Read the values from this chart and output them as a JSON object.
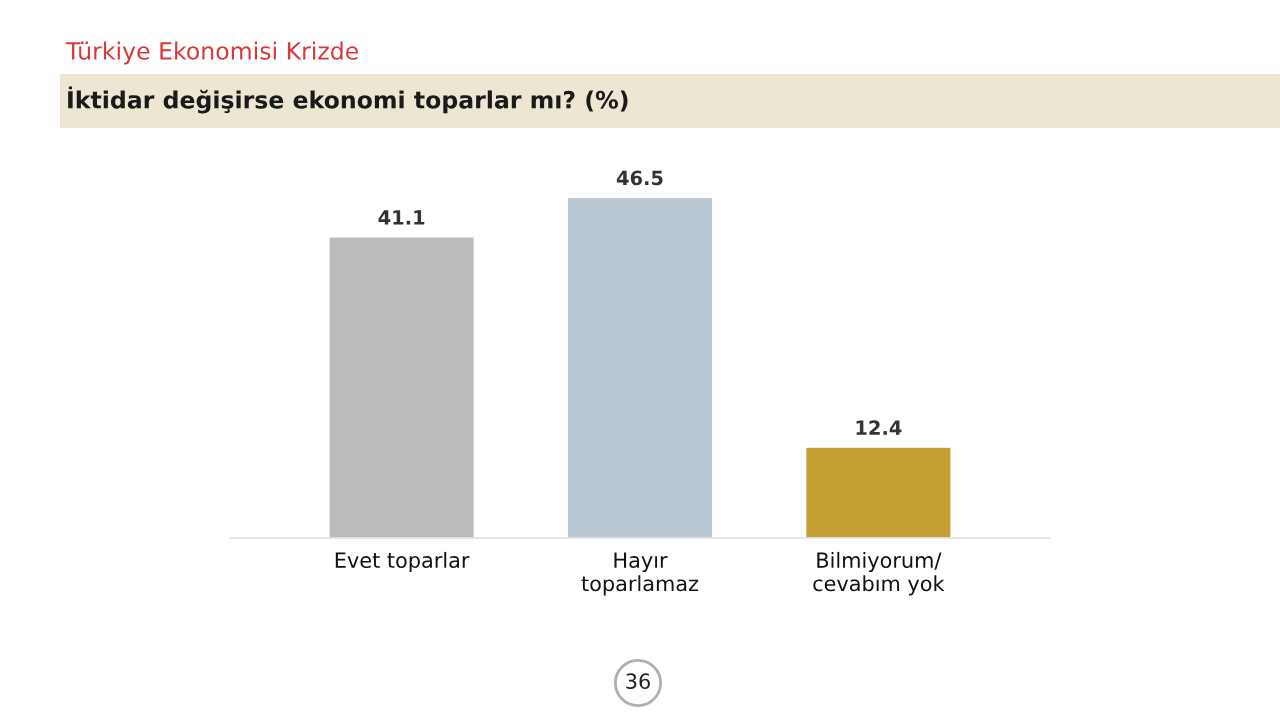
{
  "chart_data": {
    "type": "bar",
    "title": "Türkiye Ekonomisi Krizde",
    "subtitle": "İktidar değişirse ekonomi toparlar mı? (%)",
    "categories": [
      "Evet toparlar",
      "Hayır\ntoparlamaz",
      "Bilmiyorum/\ncevabım yok"
    ],
    "values": [
      41.1,
      46.5,
      12.4
    ],
    "colors": [
      "#bcbbba",
      "#bac8d3",
      "#c49f32"
    ],
    "data_labels": true,
    "grid": false,
    "legend": false,
    "annotations": [
      "36"
    ]
  }
}
